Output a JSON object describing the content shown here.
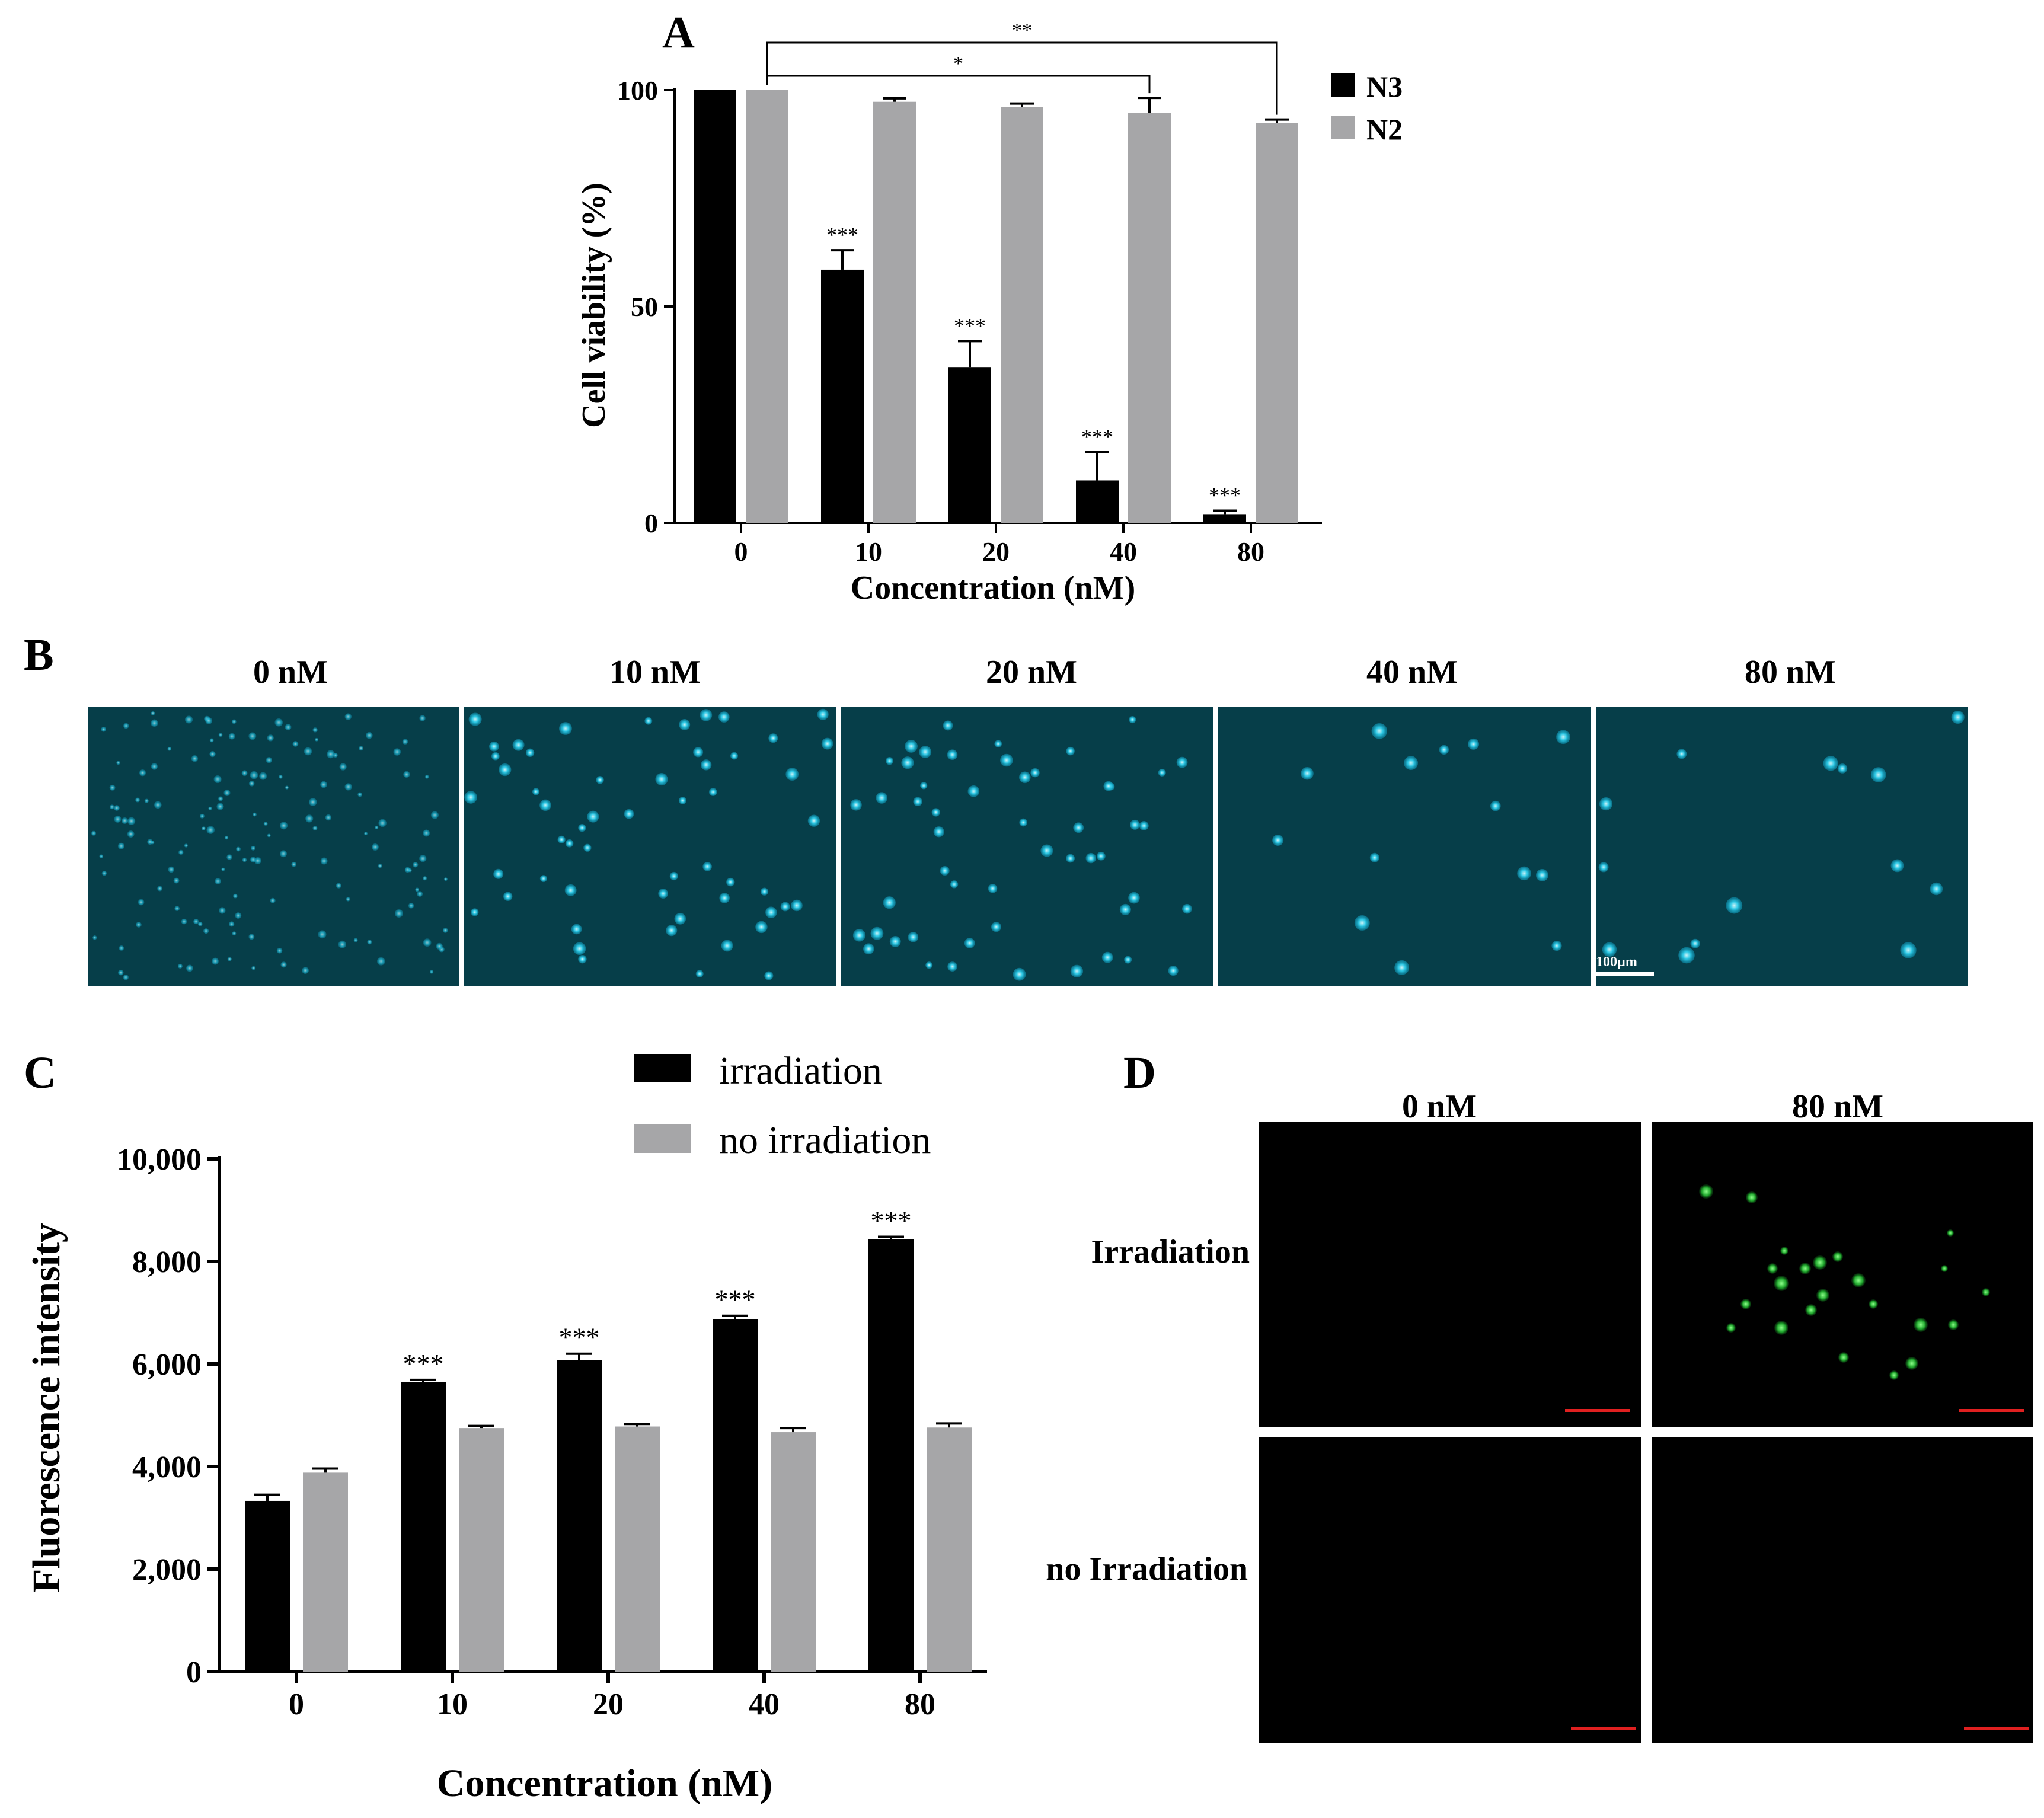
{
  "colors": {
    "series_dark": "#000000",
    "series_grey": "#a6a6a8",
    "micro_blue_bg": "#063e49",
    "micro_cell": "#22c6e6",
    "micro_green": "#2fc93b",
    "scale_red": "#e02020",
    "scale_white": "#ffffff"
  },
  "panel_labels": [
    "A",
    "B",
    "C",
    "D"
  ],
  "panelB": {
    "titles": [
      "0 nM",
      "10 nM",
      "20 nM",
      "40 nM",
      "80 nM"
    ],
    "scale_bar": "100µm"
  },
  "panelD": {
    "col_titles": [
      "0 nM",
      "80 nM"
    ],
    "row_titles": [
      "Irradiation",
      "no Irradiation"
    ]
  },
  "chart_data": [
    {
      "type": "bar",
      "panel": "A",
      "categories": [
        "0",
        "10",
        "20",
        "40",
        "80"
      ],
      "series": [
        {
          "name": "N3",
          "values": [
            100,
            58.5,
            36,
            9.8,
            2
          ],
          "errors": [
            0,
            4.5,
            6,
            6.5,
            0.8
          ]
        },
        {
          "name": "N2",
          "values": [
            100,
            97.3,
            96.1,
            94.7,
            92.4
          ],
          "errors": [
            0,
            0.8,
            0.8,
            3.5,
            0.8
          ]
        }
      ],
      "ylim": [
        0,
        100
      ],
      "yticks": [
        "0",
        "50",
        "100"
      ],
      "ylabel": "Cell viability (%)",
      "xlabel": "Concentration (nM)",
      "significance": [
        "",
        "***",
        "***",
        "***",
        "***"
      ],
      "brackets": [
        {
          "from": 0,
          "to": 3,
          "label": "*"
        },
        {
          "from": 0,
          "to": 4,
          "label": "**"
        }
      ],
      "legend_position": "right"
    },
    {
      "type": "bar",
      "panel": "C",
      "categories": [
        "0",
        "10",
        "20",
        "40",
        "80"
      ],
      "series": [
        {
          "name": "irradiation",
          "values": [
            3330,
            5650,
            6070,
            6870,
            8430
          ],
          "errors": [
            120,
            40,
            130,
            70,
            50
          ]
        },
        {
          "name": "no irradiation",
          "values": [
            3880,
            4750,
            4780,
            4670,
            4760
          ],
          "errors": [
            80,
            40,
            50,
            80,
            80
          ]
        }
      ],
      "ylim": [
        0,
        10000
      ],
      "yticks": [
        "0",
        "2,000",
        "4,000",
        "6,000",
        "8,000",
        "10,000"
      ],
      "ylabel": "Fluorescence intensity",
      "xlabel": "Concentration (nM)",
      "significance": [
        "",
        "***",
        "***",
        "***",
        "***"
      ],
      "legend_position": "top-right"
    }
  ]
}
